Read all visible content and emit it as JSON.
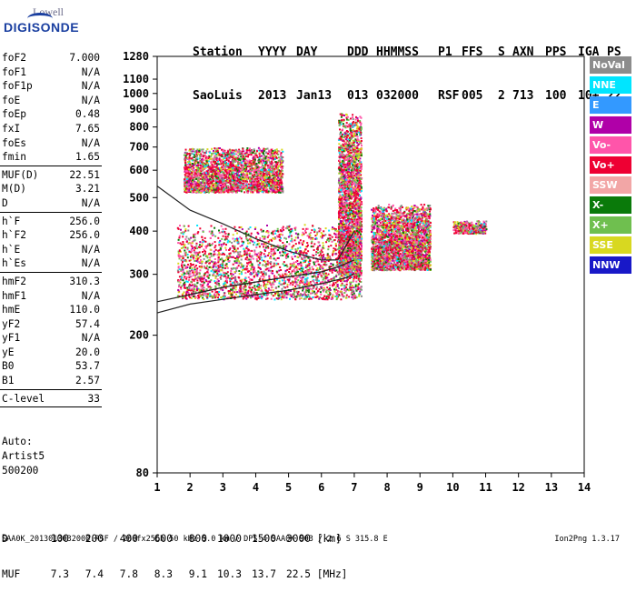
{
  "logo": {
    "top": "Lowell",
    "main": "DIGISONDE"
  },
  "header": {
    "labels": [
      "Station",
      "YYYY",
      "DAY",
      "DDD",
      "HHMMSS",
      "P1",
      "FFS",
      "S",
      "AXN",
      "PPS",
      "IGA",
      "PS"
    ],
    "values": [
      "SaoLuis",
      "2013",
      "Jan13",
      "013",
      "032000",
      "RSF",
      "005",
      "2",
      "713",
      "100",
      "10+",
      "22"
    ]
  },
  "params_group1": [
    {
      "k": "foF2",
      "v": "7.000"
    },
    {
      "k": "foF1",
      "v": "N/A"
    },
    {
      "k": "foF1p",
      "v": "N/A"
    },
    {
      "k": "foE",
      "v": "N/A"
    },
    {
      "k": "foEp",
      "v": "0.48"
    },
    {
      "k": "fxI",
      "v": "7.65"
    },
    {
      "k": "foEs",
      "v": "N/A"
    },
    {
      "k": "fmin",
      "v": "1.65"
    }
  ],
  "params_group2": [
    {
      "k": "MUF(D)",
      "v": "22.51"
    },
    {
      "k": "M(D)",
      "v": "3.21"
    },
    {
      "k": "D",
      "v": "N/A"
    }
  ],
  "params_group3": [
    {
      "k": "h`F",
      "v": "256.0"
    },
    {
      "k": "h`F2",
      "v": "256.0"
    },
    {
      "k": "h`E",
      "v": "N/A"
    },
    {
      "k": "h`Es",
      "v": "N/A"
    }
  ],
  "params_group4": [
    {
      "k": "hmF2",
      "v": "310.3"
    },
    {
      "k": "hmF1",
      "v": "N/A"
    },
    {
      "k": "hmE",
      "v": "110.0"
    },
    {
      "k": "yF2",
      "v": "57.4"
    },
    {
      "k": "yF1",
      "v": "N/A"
    },
    {
      "k": "yE",
      "v": "20.0"
    },
    {
      "k": "B0",
      "v": "53.7"
    },
    {
      "k": "B1",
      "v": "2.57"
    }
  ],
  "params_group5": [
    {
      "k": "C-level",
      "v": "33"
    }
  ],
  "auto": {
    "line1": "Auto:",
    "line2": "Artist5",
    "line3": "500200"
  },
  "legend": [
    {
      "label": "NoVal",
      "color": "#8c8c8c"
    },
    {
      "label": "NNE",
      "color": "#00e5ff"
    },
    {
      "label": "E",
      "color": "#3399ff"
    },
    {
      "label": "W",
      "color": "#b000a8"
    },
    {
      "label": "Vo-",
      "color": "#ff55aa"
    },
    {
      "label": "Vo+",
      "color": "#ee0033"
    },
    {
      "label": "SSW",
      "color": "#f2a6a6"
    },
    {
      "label": "X-",
      "color": "#0a7a0a"
    },
    {
      "label": "X+",
      "color": "#6fbf4f"
    },
    {
      "label": "SSE",
      "color": "#d8d820"
    },
    {
      "label": "NNW",
      "color": "#1818c8"
    }
  ],
  "chart_data": {
    "type": "scatter",
    "xlabel": "",
    "ylabel": "",
    "x_ticks": [
      1,
      2,
      3,
      4,
      5,
      6,
      7,
      8,
      9,
      10,
      11,
      12,
      13,
      14
    ],
    "y_ticks": [
      80,
      200,
      300,
      400,
      500,
      600,
      700,
      800,
      900,
      1000,
      1100,
      1280
    ],
    "xlim": [
      1,
      14
    ],
    "ylim": [
      80,
      1280
    ],
    "y_scale": "log",
    "grid": false,
    "echo_clusters": [
      {
        "f_min": 1.6,
        "f_max": 7.2,
        "h_min": 255,
        "h_max": 420
      },
      {
        "f_min": 1.8,
        "f_max": 4.8,
        "h_min": 520,
        "h_max": 700
      },
      {
        "f_min": 6.5,
        "f_max": 7.2,
        "h_min": 300,
        "h_max": 880
      },
      {
        "f_min": 7.5,
        "f_max": 9.3,
        "h_min": 310,
        "h_max": 480
      },
      {
        "f_min": 10.0,
        "f_max": 11.0,
        "h_min": 395,
        "h_max": 430
      }
    ],
    "series": [
      {
        "name": "h`F trace",
        "x": [
          1.0,
          2.0,
          3.0,
          4.0,
          5.0,
          6.0,
          6.8,
          7.0
        ],
        "y": [
          232,
          246,
          254,
          262,
          270,
          282,
          294,
          302
        ]
      },
      {
        "name": "profile",
        "x": [
          1.0,
          2.0,
          3.0,
          4.0,
          5.0,
          6.0,
          6.5,
          7.0
        ],
        "y": [
          250,
          262,
          275,
          285,
          295,
          305,
          315,
          330
        ]
      },
      {
        "name": "upper trace",
        "x": [
          1.0,
          2.0,
          3.0,
          4.0,
          5.0,
          6.0,
          6.5,
          7.0
        ],
        "y": [
          540,
          460,
          420,
          380,
          350,
          330,
          330,
          400
        ]
      }
    ],
    "scaling_table": {
      "D_label": "D",
      "D_values": [
        "100",
        "200",
        "400",
        "600",
        "800",
        "1000",
        "1500",
        "3000"
      ],
      "D_unit": "[km]",
      "MUF_label": "MUF",
      "MUF_values": [
        "7.3",
        "7.4",
        "7.8",
        "8.3",
        "9.1",
        "10.3",
        "13.7",
        "22.5"
      ],
      "MUF_unit": "[MHz]"
    }
  },
  "footer": {
    "left": "SAA0K_2013013032000.RSF / 260fx256h 50 kHz 5.0 km / DPS-4 SAA0K 903 / 2.6 S 315.8 E",
    "right": "Ion2Png 1.3.17"
  }
}
